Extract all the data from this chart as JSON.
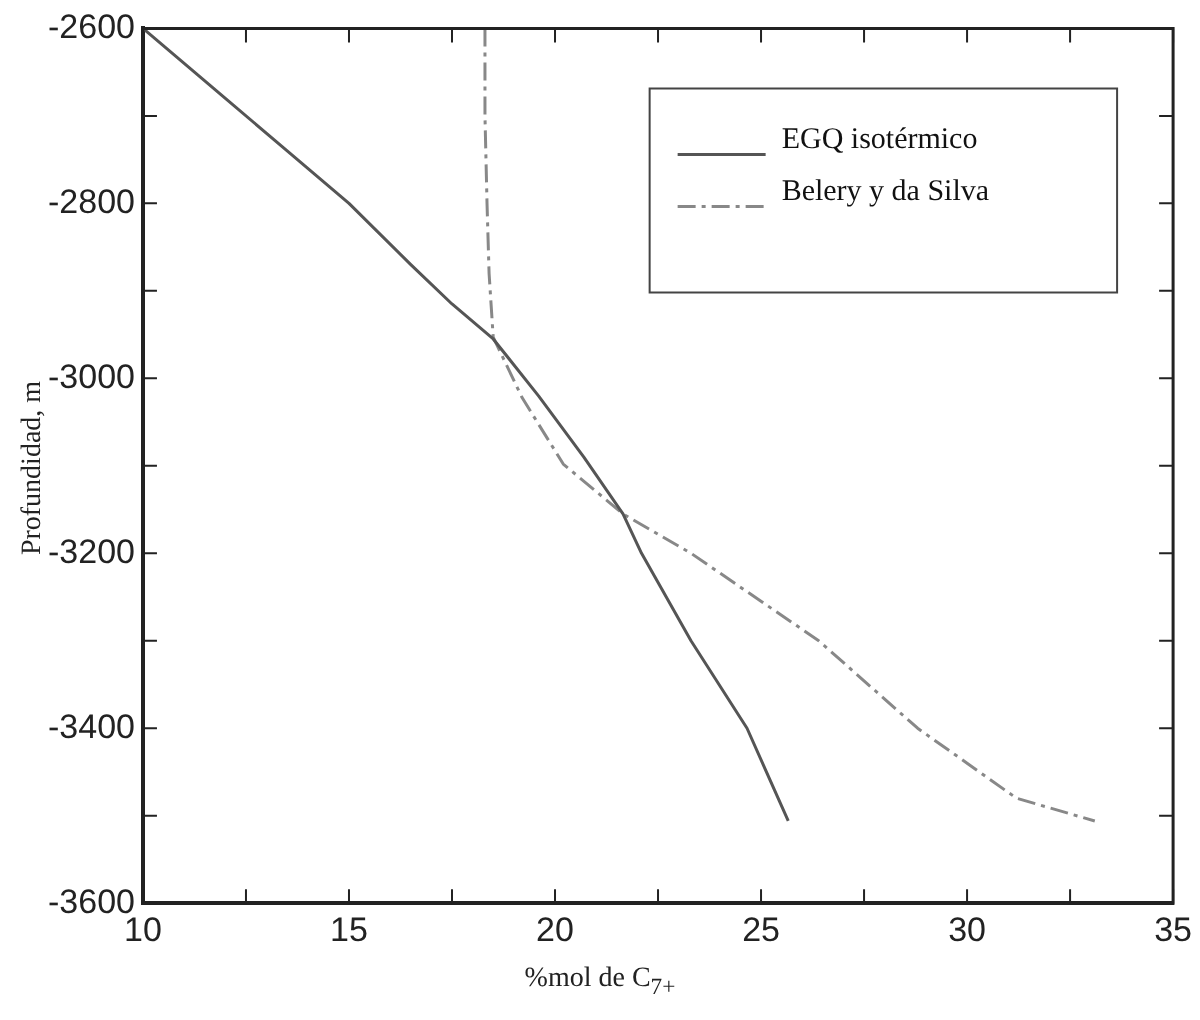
{
  "chart_data": {
    "type": "line",
    "xlabel": "%mol de C$_{7+}$",
    "ylabel": "Profundidad, m",
    "xlim": [
      10,
      35
    ],
    "xticks": [
      10,
      {
        "value": 12.5,
        "label": null
      },
      15,
      {
        "value": 17.5,
        "label": null
      },
      20,
      {
        "value": 22.5,
        "label": null
      },
      25,
      {
        "value": 27.5,
        "label": null
      },
      30,
      {
        "value": 32.5,
        "label": null
      },
      35
    ],
    "ylim": [
      -3600,
      -2600
    ],
    "yticks": [
      -3600,
      {
        "value": -3500,
        "label": null
      },
      -3400,
      {
        "value": -3300,
        "label": null
      },
      -3200,
      {
        "value": -3100,
        "label": null
      },
      -3000,
      {
        "value": -2900,
        "label": null
      },
      -2800,
      {
        "value": -2700,
        "label": null
      },
      -2600
    ],
    "grid": false,
    "legend": "top right",
    "marker": "none",
    "series": [
      {
        "name": "EGQ isotérmico",
        "color": "#555555",
        "line_style": "solid",
        "x": [
          10,
          12,
          13.5,
          15,
          16.5,
          17.5,
          18.5,
          19.6,
          20.7,
          21.65,
          22.1,
          23.3,
          24.66,
          25.66
        ],
        "values": [
          -2600,
          -2680,
          -2740,
          -2800,
          -2870,
          -2915,
          -2955,
          -3020,
          -3090,
          -3155,
          -3200,
          -3300,
          -3400,
          -3506
        ]
      },
      {
        "name": "Belery y da Silva",
        "color": "#888888",
        "line_style": "dashdot",
        "x": [
          18.3,
          18.3,
          18.35,
          18.4,
          18.5,
          19.2,
          20.2,
          21.65,
          23.3,
          26.4,
          28.8,
          31.2,
          33.1
        ],
        "values": [
          -2600,
          -2700,
          -2800,
          -2880,
          -2953,
          -3022,
          -3098,
          -3155,
          -3200,
          -3300,
          -3400,
          -3480,
          -3506
        ]
      }
    ]
  }
}
